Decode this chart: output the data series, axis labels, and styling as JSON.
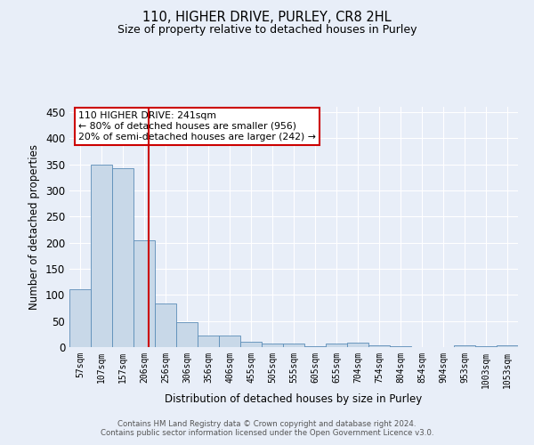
{
  "title1": "110, HIGHER DRIVE, PURLEY, CR8 2HL",
  "title2": "Size of property relative to detached houses in Purley",
  "xlabel": "Distribution of detached houses by size in Purley",
  "ylabel": "Number of detached properties",
  "categories": [
    "57sqm",
    "107sqm",
    "157sqm",
    "206sqm",
    "256sqm",
    "306sqm",
    "356sqm",
    "406sqm",
    "455sqm",
    "505sqm",
    "555sqm",
    "605sqm",
    "655sqm",
    "704sqm",
    "754sqm",
    "804sqm",
    "854sqm",
    "904sqm",
    "953sqm",
    "1003sqm",
    "1053sqm"
  ],
  "values": [
    110,
    349,
    343,
    204,
    83,
    47,
    23,
    23,
    10,
    7,
    6,
    2,
    7,
    8,
    4,
    1,
    0,
    0,
    4,
    1,
    4
  ],
  "bar_color": "#c8d8e8",
  "bar_edge_color": "#5b8db8",
  "vline_color": "#cc0000",
  "annotation_text": "110 HIGHER DRIVE: 241sqm\n← 80% of detached houses are smaller (956)\n20% of semi-detached houses are larger (242) →",
  "annotation_box_color": "#ffffff",
  "annotation_box_edge": "#cc0000",
  "background_color": "#e8eef8",
  "grid_color": "#ffffff",
  "ylim": [
    0,
    460
  ],
  "footnote1": "Contains HM Land Registry data © Crown copyright and database right 2024.",
  "footnote2": "Contains public sector information licensed under the Open Government Licence v3.0."
}
